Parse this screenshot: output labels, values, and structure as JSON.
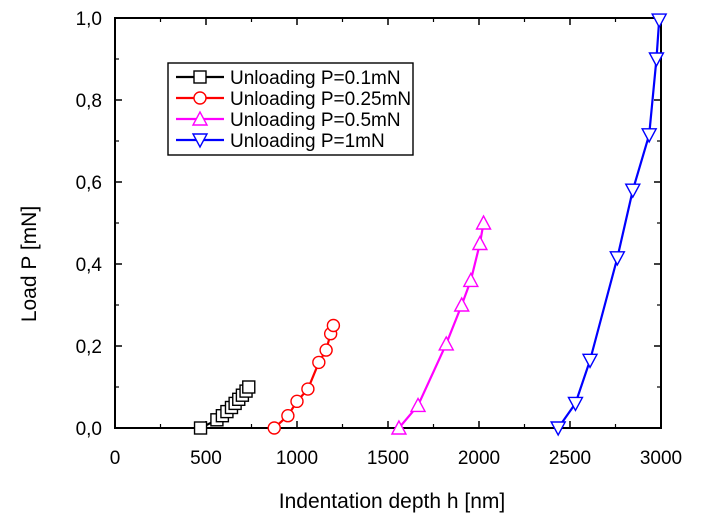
{
  "chart_data": {
    "type": "scatter",
    "xlabel": "Indentation depth  h [nm]",
    "ylabel": "Load P [mN]",
    "xlim": [
      0,
      3000
    ],
    "ylim": [
      0,
      1.0
    ],
    "x_ticks": [
      0,
      500,
      1000,
      1500,
      2000,
      2500,
      3000
    ],
    "x_tick_labels": [
      "0",
      "500",
      "1000",
      "1500",
      "2000",
      "2500",
      "3000"
    ],
    "y_ticks": [
      0,
      0.2,
      0.4,
      0.6,
      0.8,
      1.0
    ],
    "y_tick_labels": [
      "0,0",
      "0,2",
      "0,4",
      "0,6",
      "0,8",
      "1,0"
    ],
    "grid": false,
    "legend_position": "top-left",
    "series": [
      {
        "name": "Unloading P=0.1mN",
        "color": "#000000",
        "marker": "square",
        "x": [
          470,
          560,
          590,
          615,
          640,
          660,
          680,
          700,
          720,
          735
        ],
        "y": [
          0.0,
          0.02,
          0.03,
          0.04,
          0.05,
          0.06,
          0.07,
          0.08,
          0.09,
          0.1
        ]
      },
      {
        "name": "Unloading P=0.25mN",
        "color": "#ff0000",
        "marker": "circle",
        "x": [
          875,
          950,
          1000,
          1060,
          1120,
          1160,
          1185,
          1200
        ],
        "y": [
          0.0,
          0.03,
          0.065,
          0.095,
          0.16,
          0.19,
          0.23,
          0.25
        ]
      },
      {
        "name": "Unloading P=0.5mN",
        "color": "#ff00ff",
        "marker": "triangle-up",
        "x": [
          1560,
          1665,
          1820,
          1905,
          1955,
          2005,
          2025
        ],
        "y": [
          0.0,
          0.055,
          0.205,
          0.3,
          0.36,
          0.45,
          0.5
        ]
      },
      {
        "name": "Unloading P=1mN",
        "color": "#0000ff",
        "marker": "triangle-down",
        "x": [
          2435,
          2530,
          2610,
          2760,
          2845,
          2935,
          2975,
          2990
        ],
        "y": [
          0.0,
          0.06,
          0.165,
          0.415,
          0.58,
          0.715,
          0.9,
          0.995
        ]
      }
    ]
  }
}
